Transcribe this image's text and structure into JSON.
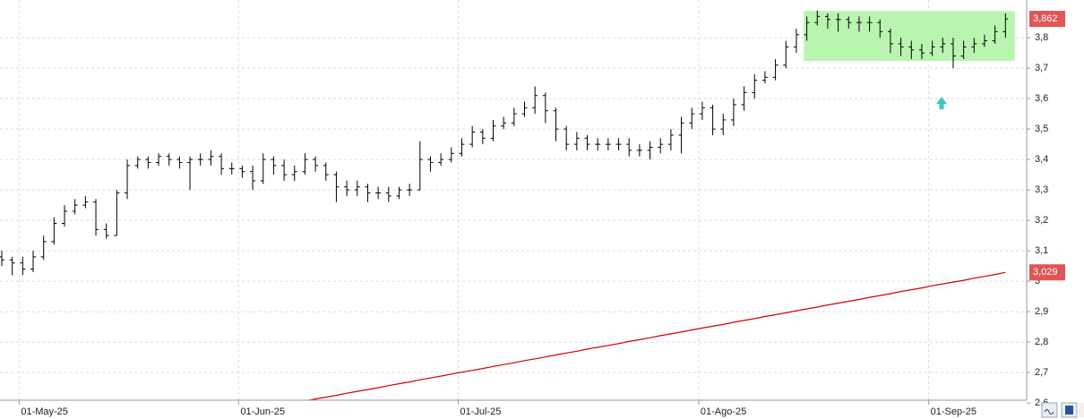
{
  "chart_data": {
    "type": "ohlc",
    "categories": [
      null,
      null,
      "01-May-25",
      null,
      null,
      null,
      null,
      null,
      null,
      null,
      null,
      null,
      null,
      null,
      null,
      null,
      null,
      null,
      null,
      null,
      null,
      null,
      null,
      "01-Jun-25",
      null,
      null,
      null,
      null,
      null,
      null,
      null,
      null,
      null,
      null,
      null,
      null,
      null,
      null,
      null,
      null,
      null,
      null,
      null,
      null,
      "01-Jul-25",
      null,
      null,
      null,
      null,
      null,
      null,
      null,
      null,
      null,
      null,
      null,
      null,
      null,
      null,
      null,
      null,
      null,
      null,
      null,
      null,
      null,
      null,
      "01-Ago-25",
      null,
      null,
      null,
      null,
      null,
      null,
      null,
      null,
      null,
      null,
      null,
      null,
      null,
      null,
      null,
      null,
      null,
      null,
      null,
      null,
      null,
      "01-Sep-25",
      null,
      null,
      null,
      null,
      null,
      null,
      null
    ],
    "series": [
      {
        "name": null,
        "color": "#000000",
        "last_label": "3,862",
        "label_color": "#e05555",
        "open": [
          3.08,
          3.07,
          3.06,
          3.04,
          3.08,
          3.13,
          3.19,
          3.23,
          3.25,
          3.26,
          3.17,
          3.15,
          3.29,
          3.38,
          3.4,
          3.39,
          3.41,
          3.4,
          3.39,
          3.4,
          3.4,
          3.41,
          3.37,
          3.37,
          3.36,
          3.33,
          3.4,
          3.38,
          3.35,
          3.36,
          3.4,
          3.38,
          3.35,
          3.31,
          3.3,
          3.31,
          3.29,
          3.29,
          3.28,
          3.3,
          3.3,
          3.4,
          3.39,
          3.4,
          3.42,
          3.45,
          3.49,
          3.47,
          3.51,
          3.52,
          3.55,
          3.57,
          3.61,
          3.56,
          3.5,
          3.45,
          3.47,
          3.45,
          3.45,
          3.45,
          3.45,
          3.43,
          3.43,
          3.44,
          3.45,
          3.48,
          3.52,
          3.55,
          3.57,
          3.5,
          3.53,
          3.58,
          3.62,
          3.66,
          3.67,
          3.71,
          3.77,
          3.81,
          3.85,
          3.87,
          3.86,
          3.86,
          3.85,
          3.85,
          3.85,
          3.82,
          3.78,
          3.77,
          3.76,
          3.75,
          3.77,
          3.78,
          3.74,
          3.77,
          3.78,
          3.79,
          3.82
        ],
        "high": [
          3.1,
          3.08,
          3.08,
          3.1,
          3.15,
          3.21,
          3.25,
          3.27,
          3.28,
          3.27,
          3.19,
          3.3,
          3.4,
          3.41,
          3.41,
          3.42,
          3.42,
          3.41,
          3.41,
          3.42,
          3.43,
          3.42,
          3.39,
          3.38,
          3.38,
          3.42,
          3.41,
          3.4,
          3.38,
          3.42,
          3.41,
          3.39,
          3.36,
          3.33,
          3.33,
          3.32,
          3.31,
          3.31,
          3.31,
          3.32,
          3.46,
          3.41,
          3.42,
          3.44,
          3.47,
          3.51,
          3.5,
          3.53,
          3.54,
          3.57,
          3.59,
          3.64,
          3.62,
          3.57,
          3.51,
          3.49,
          3.48,
          3.47,
          3.47,
          3.47,
          3.47,
          3.45,
          3.46,
          3.47,
          3.5,
          3.54,
          3.57,
          3.59,
          3.58,
          3.55,
          3.6,
          3.64,
          3.68,
          3.69,
          3.73,
          3.79,
          3.83,
          3.87,
          3.89,
          3.88,
          3.88,
          3.87,
          3.87,
          3.87,
          3.86,
          3.83,
          3.8,
          3.79,
          3.78,
          3.79,
          3.8,
          3.8,
          3.79,
          3.8,
          3.81,
          3.84,
          3.88
        ],
        "low": [
          3.05,
          3.02,
          3.02,
          3.03,
          3.07,
          3.12,
          3.18,
          3.22,
          3.24,
          3.15,
          3.14,
          3.15,
          3.27,
          3.37,
          3.37,
          3.38,
          3.38,
          3.37,
          3.3,
          3.38,
          3.38,
          3.35,
          3.35,
          3.34,
          3.3,
          3.32,
          3.35,
          3.33,
          3.33,
          3.35,
          3.36,
          3.33,
          3.26,
          3.28,
          3.28,
          3.26,
          3.27,
          3.26,
          3.27,
          3.28,
          3.3,
          3.36,
          3.38,
          3.39,
          3.41,
          3.44,
          3.45,
          3.46,
          3.5,
          3.51,
          3.54,
          3.55,
          3.52,
          3.46,
          3.43,
          3.43,
          3.43,
          3.43,
          3.43,
          3.43,
          3.41,
          3.41,
          3.4,
          3.42,
          3.43,
          3.42,
          3.5,
          3.53,
          3.48,
          3.48,
          3.51,
          3.56,
          3.6,
          3.65,
          3.66,
          3.7,
          3.75,
          3.79,
          3.84,
          3.83,
          3.82,
          3.83,
          3.82,
          3.82,
          3.8,
          3.75,
          3.74,
          3.73,
          3.73,
          3.74,
          3.75,
          3.7,
          3.73,
          3.75,
          3.77,
          3.78,
          3.8
        ],
        "close": [
          3.07,
          3.06,
          3.04,
          3.08,
          3.13,
          3.19,
          3.23,
          3.25,
          3.26,
          3.17,
          3.15,
          3.29,
          3.38,
          3.4,
          3.39,
          3.41,
          3.4,
          3.39,
          3.4,
          3.4,
          3.41,
          3.37,
          3.37,
          3.36,
          3.33,
          3.4,
          3.38,
          3.35,
          3.36,
          3.4,
          3.38,
          3.35,
          3.31,
          3.3,
          3.31,
          3.29,
          3.29,
          3.28,
          3.3,
          3.3,
          3.4,
          3.39,
          3.4,
          3.42,
          3.45,
          3.49,
          3.47,
          3.51,
          3.52,
          3.55,
          3.57,
          3.61,
          3.56,
          3.5,
          3.45,
          3.47,
          3.45,
          3.45,
          3.45,
          3.45,
          3.43,
          3.43,
          3.44,
          3.45,
          3.48,
          3.52,
          3.55,
          3.57,
          3.5,
          3.53,
          3.58,
          3.62,
          3.66,
          3.67,
          3.71,
          3.77,
          3.81,
          3.85,
          3.87,
          3.86,
          3.86,
          3.85,
          3.85,
          3.85,
          3.82,
          3.78,
          3.77,
          3.76,
          3.75,
          3.77,
          3.78,
          3.74,
          3.77,
          3.78,
          3.79,
          3.82,
          3.862
        ]
      },
      {
        "name": null,
        "type": "line",
        "color": "#d40000",
        "last_label": "3,029",
        "label_color": "#e05555",
        "values": [
          null,
          null,
          null,
          null,
          null,
          null,
          null,
          null,
          null,
          null,
          null,
          null,
          null,
          null,
          null,
          null,
          null,
          null,
          null,
          null,
          null,
          null,
          null,
          null,
          null,
          null,
          null,
          null,
          2.6,
          2.606,
          2.613,
          2.619,
          2.625,
          2.632,
          2.638,
          2.644,
          2.65,
          2.657,
          2.663,
          2.669,
          2.676,
          2.682,
          2.688,
          2.695,
          2.701,
          2.707,
          2.713,
          2.72,
          2.726,
          2.732,
          2.739,
          2.745,
          2.751,
          2.758,
          2.764,
          2.77,
          2.777,
          2.783,
          2.789,
          2.795,
          2.802,
          2.808,
          2.814,
          2.821,
          2.827,
          2.833,
          2.84,
          2.846,
          2.852,
          2.858,
          2.865,
          2.871,
          2.877,
          2.884,
          2.89,
          2.896,
          2.903,
          2.909,
          2.915,
          2.922,
          2.928,
          2.934,
          2.94,
          2.947,
          2.953,
          2.959,
          2.966,
          2.972,
          2.978,
          2.985,
          2.991,
          2.997,
          3.003,
          3.01,
          3.016,
          3.022,
          3.029
        ]
      }
    ],
    "highlight": {
      "x": [
        76.7,
        96.9
      ],
      "y": [
        3.724,
        3.888
      ],
      "color": "#b9f5b0"
    },
    "ylim": [
      2.609,
      3.924
    ],
    "yticks": [
      {
        "value": 2.6,
        "label": "2,6"
      },
      {
        "value": 2.7,
        "label": "2,7"
      },
      {
        "value": 2.8,
        "label": "2,8"
      },
      {
        "value": 2.9,
        "label": "2,9"
      },
      3,
      {
        "value": 3.1,
        "label": "3,1"
      },
      {
        "value": 3.2,
        "label": "3,2"
      },
      {
        "value": 3.3,
        "label": "3,3"
      },
      {
        "value": 3.4,
        "label": "3,4"
      },
      {
        "value": 3.5,
        "label": "3,5"
      },
      {
        "value": 3.6,
        "label": "3,6"
      },
      {
        "value": 3.7,
        "label": "3,7"
      },
      {
        "value": 3.8,
        "label": "3,8"
      }
    ],
    "grid": true,
    "y_axis_side": "right"
  }
}
